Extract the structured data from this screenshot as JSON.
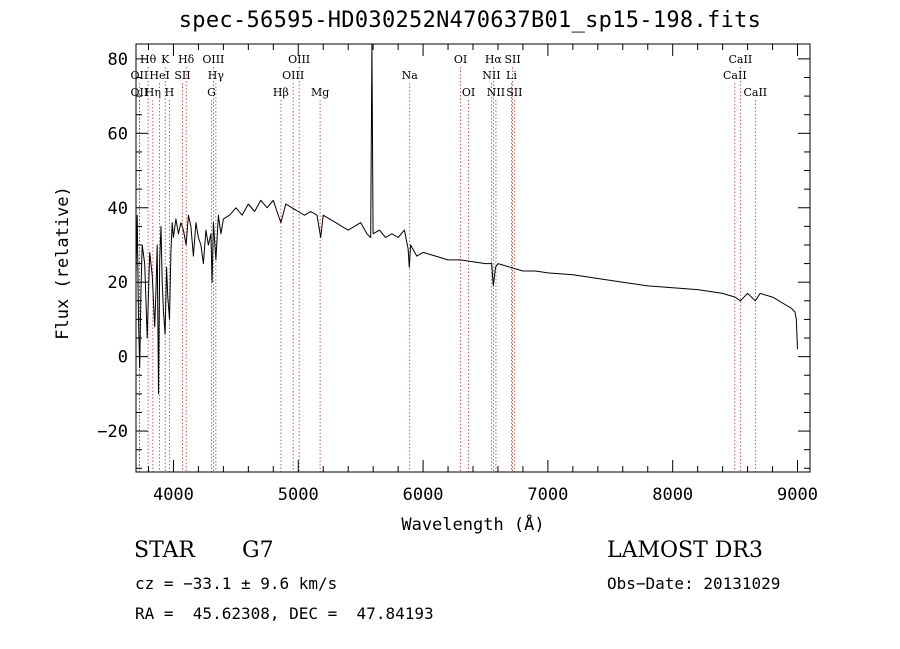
{
  "chart_data": {
    "type": "line",
    "title": "spec-56595-HD030252N470637B01_sp15-198.fits",
    "xlabel": "Wavelength (Å)",
    "ylabel": "Flux (relative)",
    "xlim": [
      3700,
      9100
    ],
    "ylim": [
      -31,
      84
    ],
    "x_ticks": [
      4000,
      5000,
      6000,
      7000,
      8000,
      9000
    ],
    "x_tick_labels": [
      "4000",
      "5000",
      "6000",
      "7000",
      "8000",
      "9000"
    ],
    "y_ticks": [
      -20,
      0,
      20,
      40,
      60,
      80
    ],
    "y_tick_labels": [
      "−20",
      "0",
      "20",
      "40",
      "60",
      "80"
    ],
    "grid": false,
    "series": [
      {
        "name": "flux",
        "x": [
          3700,
          3710,
          3720,
          3730,
          3740,
          3750,
          3770,
          3790,
          3810,
          3830,
          3850,
          3860,
          3870,
          3880,
          3890,
          3900,
          3910,
          3920,
          3933,
          3945,
          3955,
          3968,
          3980,
          3990,
          4000,
          4020,
          4040,
          4060,
          4080,
          4101,
          4120,
          4140,
          4160,
          4180,
          4200,
          4220,
          4240,
          4260,
          4280,
          4300,
          4310,
          4320,
          4340,
          4360,
          4380,
          4400,
          4450,
          4500,
          4550,
          4600,
          4650,
          4700,
          4750,
          4800,
          4830,
          4861,
          4900,
          4950,
          5000,
          5050,
          5100,
          5150,
          5180,
          5200,
          5250,
          5300,
          5350,
          5400,
          5450,
          5500,
          5550,
          5580,
          5590,
          5600,
          5650,
          5700,
          5750,
          5800,
          5850,
          5880,
          5890,
          5900,
          5950,
          6000,
          6100,
          6200,
          6300,
          6400,
          6500,
          6550,
          6563,
          6580,
          6600,
          6700,
          6800,
          6900,
          7000,
          7200,
          7400,
          7600,
          7800,
          8000,
          8200,
          8400,
          8500,
          8542,
          8600,
          8662,
          8700,
          8800,
          8900,
          8950,
          8980,
          8990,
          9000
        ],
        "values": [
          22,
          38,
          10,
          -3,
          18,
          30,
          25,
          5,
          28,
          22,
          8,
          18,
          30,
          -10,
          26,
          35,
          20,
          12,
          6,
          24,
          16,
          10,
          28,
          36,
          32,
          37,
          33,
          36,
          34,
          30,
          38,
          35,
          27,
          36,
          32,
          30,
          25,
          34,
          30,
          33,
          20,
          36,
          26,
          38,
          33,
          37,
          38,
          40,
          38,
          41,
          39,
          42,
          40,
          42,
          39,
          36,
          41,
          40,
          39,
          38,
          39,
          38,
          32,
          38,
          37,
          36,
          35,
          34,
          35,
          36,
          33,
          32,
          85,
          33,
          34,
          32,
          33,
          32,
          34,
          29,
          24,
          30,
          27,
          28,
          27,
          26,
          26,
          25.5,
          25,
          25,
          19,
          24,
          25,
          24,
          23,
          23,
          22.5,
          22,
          21,
          20,
          19,
          18.5,
          18,
          17,
          16,
          15,
          17,
          15,
          17,
          16,
          14,
          13,
          12,
          10,
          2
        ]
      }
    ],
    "line_markers": [
      {
        "label": "OII",
        "wavelength": 3727,
        "row": 2
      },
      {
        "label": "OII",
        "wavelength": 3727,
        "row": 3
      },
      {
        "label": "Hθ",
        "wavelength": 3797,
        "row": 1
      },
      {
        "label": "Hη",
        "wavelength": 3835,
        "row": 3
      },
      {
        "label": "HeI",
        "wavelength": 3889,
        "row": 2
      },
      {
        "label": "K",
        "wavelength": 3934,
        "row": 1
      },
      {
        "label": "H",
        "wavelength": 3968,
        "row": 3
      },
      {
        "label": "SII",
        "wavelength": 4072,
        "row": 2
      },
      {
        "label": "Hδ",
        "wavelength": 4102,
        "row": 1
      },
      {
        "label": "OIII",
        "wavelength": 4320,
        "row": 1
      },
      {
        "label": "Hγ",
        "wavelength": 4340,
        "row": 2
      },
      {
        "label": "G",
        "wavelength": 4305,
        "row": 3
      },
      {
        "label": "Hβ",
        "wavelength": 4861,
        "row": 3
      },
      {
        "label": "OIII",
        "wavelength": 4959,
        "row": 2
      },
      {
        "label": "OIII",
        "wavelength": 5007,
        "row": 1
      },
      {
        "label": "Mg",
        "wavelength": 5175,
        "row": 3
      },
      {
        "label": "Na",
        "wavelength": 5893,
        "row": 2
      },
      {
        "label": "OI",
        "wavelength": 6300,
        "row": 1
      },
      {
        "label": "OI",
        "wavelength": 6364,
        "row": 3
      },
      {
        "label": "NII",
        "wavelength": 6548,
        "row": 2
      },
      {
        "label": "Hα",
        "wavelength": 6563,
        "row": 1
      },
      {
        "label": "NII",
        "wavelength": 6584,
        "row": 3
      },
      {
        "label": "SII",
        "wavelength": 6717,
        "row": 1
      },
      {
        "label": "Li",
        "wavelength": 6708,
        "row": 2
      },
      {
        "label": "SII",
        "wavelength": 6731,
        "row": 3
      },
      {
        "label": "CaII",
        "wavelength": 8542,
        "row": 1
      },
      {
        "label": "CaII",
        "wavelength": 8498,
        "row": 2
      },
      {
        "label": "CaII",
        "wavelength": 8662,
        "row": 3
      }
    ]
  },
  "info": {
    "object_class": "STAR",
    "subclass": "G7",
    "survey": "LAMOST DR3",
    "redshift": "cz = −33.1 ± 9.6 km/s",
    "obs_date": "Obs−Date: 20131029",
    "coords": "RA =  45.62308, DEC =  47.84193"
  }
}
